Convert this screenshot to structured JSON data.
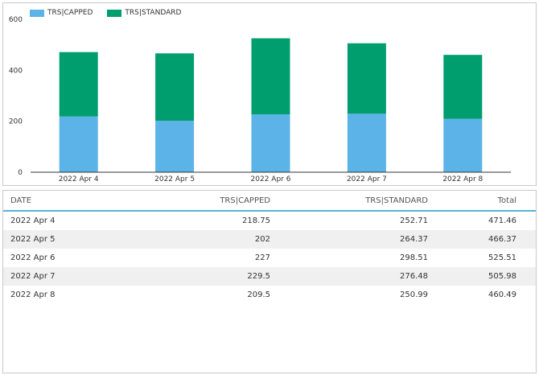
{
  "chart_data": {
    "type": "bar",
    "stacked": true,
    "categories": [
      "2022 Apr 4",
      "2022 Apr 5",
      "2022 Apr 6",
      "2022 Apr 7",
      "2022 Apr 8"
    ],
    "series": [
      {
        "name": "TRS|CAPPED",
        "color": "#5bb3e8",
        "values": [
          218.75,
          202,
          227,
          229.5,
          209.5
        ]
      },
      {
        "name": "TRS|STANDARD",
        "color": "#009e6f",
        "values": [
          252.71,
          264.37,
          298.51,
          276.48,
          250.99
        ]
      }
    ],
    "ylim": [
      0,
      600
    ],
    "yticks": [
      "0",
      "200",
      "400",
      "600"
    ],
    "legend_position": "top-left",
    "grid": false
  },
  "table": {
    "headers": {
      "date": "DATE",
      "capped": "TRS|CAPPED",
      "standard": "TRS|STANDARD",
      "total": "Total"
    },
    "rows": [
      {
        "date": "2022 Apr 4",
        "capped": "218.75",
        "standard": "252.71",
        "total": "471.46"
      },
      {
        "date": "2022 Apr 5",
        "capped": "202",
        "standard": "264.37",
        "total": "466.37"
      },
      {
        "date": "2022 Apr 6",
        "capped": "227",
        "standard": "298.51",
        "total": "525.51"
      },
      {
        "date": "2022 Apr 7",
        "capped": "229.5",
        "standard": "276.48",
        "total": "505.98"
      },
      {
        "date": "2022 Apr 8",
        "capped": "209.5",
        "standard": "250.99",
        "total": "460.49"
      }
    ]
  }
}
